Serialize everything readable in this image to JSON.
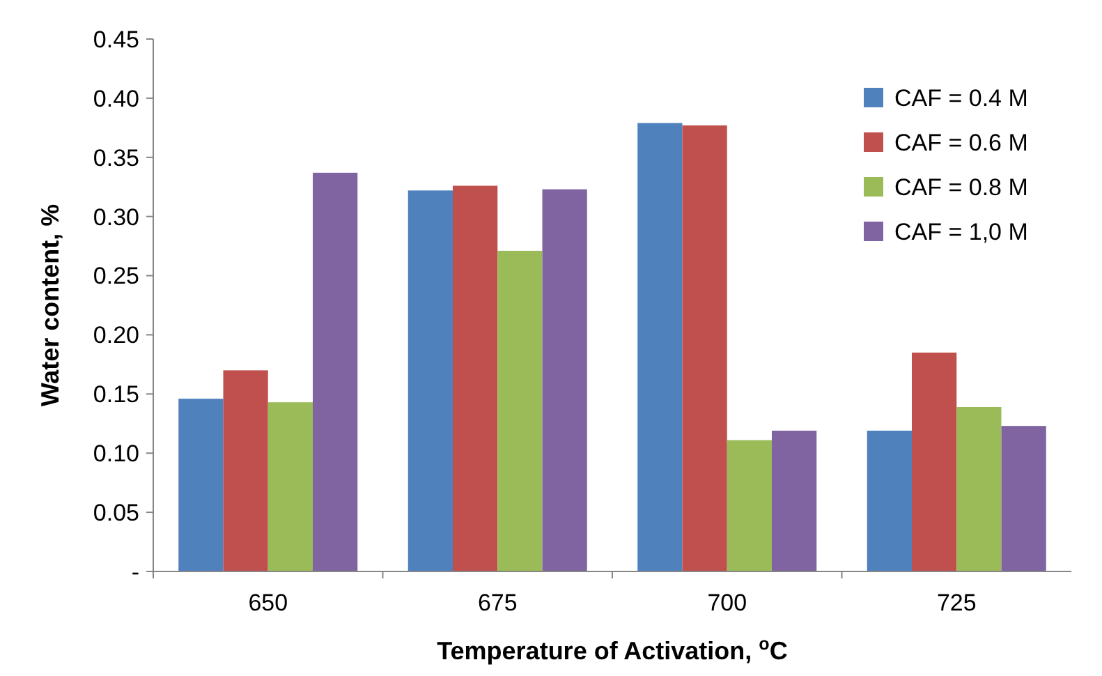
{
  "chart_data": {
    "type": "bar",
    "xlabel": "Temperature of Activation, $^{o}$C",
    "ylabel": "Water content, %",
    "categories": [
      "650",
      "675",
      "700",
      "725"
    ],
    "series": [
      {
        "name": "CAF = 0.4 M",
        "color": "#4f81bd",
        "values": [
          0.146,
          0.322,
          0.379,
          0.119
        ]
      },
      {
        "name": "CAF = 0.6 M",
        "color": "#c0504d",
        "values": [
          0.17,
          0.326,
          0.377,
          0.185
        ]
      },
      {
        "name": "CAF = 0.8 M",
        "color": "#9bbb59",
        "values": [
          0.143,
          0.271,
          0.111,
          0.139
        ]
      },
      {
        "name": "CAF = 1,0 M",
        "color": "#8064a2",
        "values": [
          0.337,
          0.323,
          0.119,
          0.123
        ]
      }
    ],
    "ylim": [
      0,
      0.45
    ],
    "yticks": [
      {
        "value": 0,
        "label": "-"
      },
      {
        "value": 0.05,
        "label": "0.05"
      },
      {
        "value": 0.1,
        "label": "0.10"
      },
      {
        "value": 0.15,
        "label": "0.15"
      },
      {
        "value": 0.2,
        "label": "0.20"
      },
      {
        "value": 0.25,
        "label": "0.25"
      },
      {
        "value": 0.3,
        "label": "0.30"
      },
      {
        "value": 0.35,
        "label": "0.35"
      },
      {
        "value": 0.4,
        "label": "0.40"
      },
      {
        "value": 0.45,
        "label": "0.45"
      }
    ],
    "legend": "top right",
    "grid": false
  }
}
